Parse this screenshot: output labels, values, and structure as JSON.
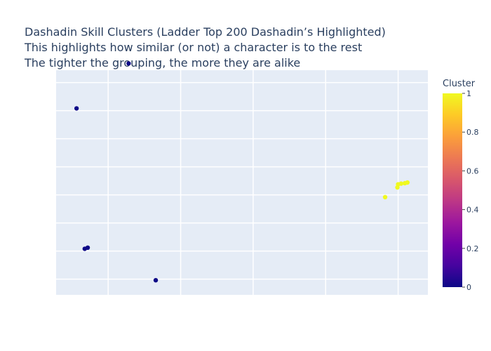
{
  "chart_data": {
    "type": "scatter",
    "title": [
      "Dashadin Skill Clusters (Ladder Top 200 Dashadin’s Highlighted)",
      "This highlights how similar (or not) a character is to the rest",
      "The tighter the grouping, the more they are alike"
    ],
    "xlabel": "",
    "ylabel": "",
    "grid": true,
    "xlim": [
      0,
      10
    ],
    "ylim": [
      0,
      10
    ],
    "x_gridlines": [
      1.4,
      3.35,
      5.3,
      7.25,
      9.2
    ],
    "y_gridlines": [
      0.7,
      1.95,
      3.2,
      4.45,
      5.7,
      6.95,
      8.2,
      9.45
    ],
    "points": [
      {
        "x": 1.95,
        "y": 10.3,
        "cluster": 0
      },
      {
        "x": 0.55,
        "y": 8.3,
        "cluster": 0
      },
      {
        "x": 0.77,
        "y": 2.05,
        "cluster": 0
      },
      {
        "x": 0.85,
        "y": 2.1,
        "cluster": 0
      },
      {
        "x": 2.68,
        "y": 0.65,
        "cluster": 0
      },
      {
        "x": 8.85,
        "y": 4.35,
        "cluster": 1
      },
      {
        "x": 9.18,
        "y": 4.78,
        "cluster": 1
      },
      {
        "x": 9.2,
        "y": 4.92,
        "cluster": 1
      },
      {
        "x": 9.28,
        "y": 4.95,
        "cluster": 1
      },
      {
        "x": 9.38,
        "y": 4.97,
        "cluster": 1
      },
      {
        "x": 9.45,
        "y": 5.0,
        "cluster": 1
      }
    ],
    "colorbar": {
      "title": "Cluster",
      "min": 0,
      "max": 1,
      "ticks": [
        "0",
        "0.2",
        "0.4",
        "0.6",
        "0.8",
        "1"
      ],
      "colorscale": [
        "#0d0887",
        "#46039f",
        "#7201a8",
        "#9c179e",
        "#bd3786",
        "#d8576b",
        "#ed7953",
        "#fb9f3a",
        "#fdca26",
        "#f0f921"
      ]
    },
    "colors": {
      "plot_bg": "#e5ecf6",
      "grid": "#ffffff",
      "cluster_0": "#0d0887",
      "cluster_1": "#f0f921"
    }
  }
}
